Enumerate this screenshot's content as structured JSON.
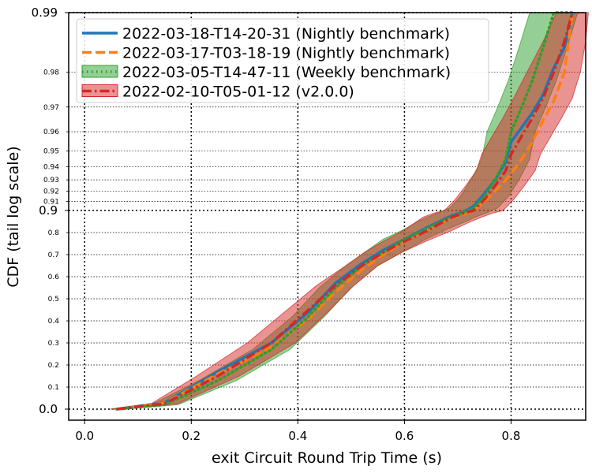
{
  "chart_data": {
    "type": "line",
    "xlabel": "exit Circuit Round Trip Time (s)",
    "ylabel": "CDF (tail log scale)",
    "xlim": [
      -0.03,
      0.94
    ],
    "x_ticks": [
      "0.0",
      "0.2",
      "0.4",
      "0.6",
      "0.8"
    ],
    "y_scale": "tail-log",
    "y_major_ticks": [
      "0.0",
      "0.9",
      "0.99"
    ],
    "y_minor_ticks": [
      "0.1",
      "0.2",
      "0.3",
      "0.4",
      "0.5",
      "0.6",
      "0.7",
      "0.8",
      "0.91",
      "0.92",
      "0.93",
      "0.94",
      "0.95",
      "0.96",
      "0.97",
      "0.98"
    ],
    "grid": true,
    "legend_position": "top-left",
    "series": [
      {
        "name": "2022-03-18-T14-20-31 (Nightly benchmark)",
        "color": "#1f77b4",
        "style": "solid",
        "band": false,
        "x": [
          0.06,
          0.15,
          0.25,
          0.35,
          0.42,
          0.47,
          0.52,
          0.56,
          0.6,
          0.64,
          0.67,
          0.69,
          0.71,
          0.73,
          0.75,
          0.77,
          0.79,
          0.8,
          0.82,
          0.84,
          0.86,
          0.88,
          0.9,
          0.915
        ],
        "y": [
          0.0,
          0.03,
          0.17,
          0.3,
          0.44,
          0.57,
          0.66,
          0.72,
          0.77,
          0.82,
          0.855,
          0.878,
          0.893,
          0.905,
          0.918,
          0.93,
          0.943,
          0.955,
          0.962,
          0.968,
          0.974,
          0.981,
          0.985,
          0.99
        ]
      },
      {
        "name": "2022-03-17-T03-18-19 (Nightly benchmark)",
        "color": "#ff7f0e",
        "style": "dashed",
        "band": false,
        "x": [
          0.06,
          0.15,
          0.25,
          0.35,
          0.42,
          0.47,
          0.52,
          0.56,
          0.6,
          0.64,
          0.67,
          0.69,
          0.71,
          0.73,
          0.75,
          0.77,
          0.79,
          0.8,
          0.82,
          0.84,
          0.86,
          0.88,
          0.9,
          0.915
        ],
        "y": [
          0.0,
          0.028,
          0.16,
          0.28,
          0.41,
          0.53,
          0.63,
          0.7,
          0.76,
          0.81,
          0.845,
          0.868,
          0.885,
          0.898,
          0.91,
          0.92,
          0.93,
          0.935,
          0.945,
          0.955,
          0.965,
          0.972,
          0.98,
          0.99
        ]
      },
      {
        "name": "2022-03-05-T14-47-11 (Weekly benchmark)",
        "color": "#2ca02c",
        "style": "dotted",
        "band": true,
        "x": [
          0.06,
          0.15,
          0.25,
          0.35,
          0.42,
          0.47,
          0.52,
          0.56,
          0.6,
          0.64,
          0.67,
          0.69,
          0.71,
          0.73,
          0.75,
          0.77,
          0.79,
          0.8,
          0.82,
          0.84,
          0.86,
          0.88,
          0.9,
          0.915
        ],
        "y": [
          0.0,
          0.02,
          0.13,
          0.27,
          0.42,
          0.55,
          0.65,
          0.71,
          0.77,
          0.815,
          0.85,
          0.872,
          0.89,
          0.903,
          0.915,
          0.93,
          0.945,
          0.96,
          0.97,
          0.978,
          0.985,
          0.99,
          0.99,
          0.99
        ],
        "band_width": [
          0.012,
          0.025,
          0.035,
          0.035,
          0.03,
          0.03,
          0.03,
          0.035,
          0.04,
          0.04,
          0.045,
          0.045,
          0.045,
          0.045,
          0.045,
          0.045,
          0.045,
          0.045,
          0.045,
          0.045,
          0.045,
          0.045,
          0.04,
          0.03
        ]
      },
      {
        "name": "2022-02-10-T05-01-12 (v2.0.0)",
        "color": "#d62728",
        "style": "dashdot",
        "band": true,
        "x": [
          0.06,
          0.15,
          0.25,
          0.35,
          0.42,
          0.47,
          0.52,
          0.56,
          0.6,
          0.64,
          0.67,
          0.69,
          0.71,
          0.73,
          0.75,
          0.77,
          0.79,
          0.8,
          0.82,
          0.84,
          0.86,
          0.88,
          0.9,
          0.915
        ],
        "y": [
          0.0,
          0.025,
          0.15,
          0.3,
          0.45,
          0.56,
          0.65,
          0.71,
          0.76,
          0.805,
          0.845,
          0.87,
          0.888,
          0.9,
          0.912,
          0.925,
          0.937,
          0.948,
          0.958,
          0.966,
          0.973,
          0.98,
          0.986,
          0.99
        ],
        "band_width": [
          0.012,
          0.025,
          0.04,
          0.045,
          0.04,
          0.035,
          0.03,
          0.035,
          0.04,
          0.045,
          0.05,
          0.055,
          0.055,
          0.055,
          0.055,
          0.055,
          0.055,
          0.055,
          0.055,
          0.055,
          0.055,
          0.05,
          0.04,
          0.03
        ]
      }
    ]
  }
}
